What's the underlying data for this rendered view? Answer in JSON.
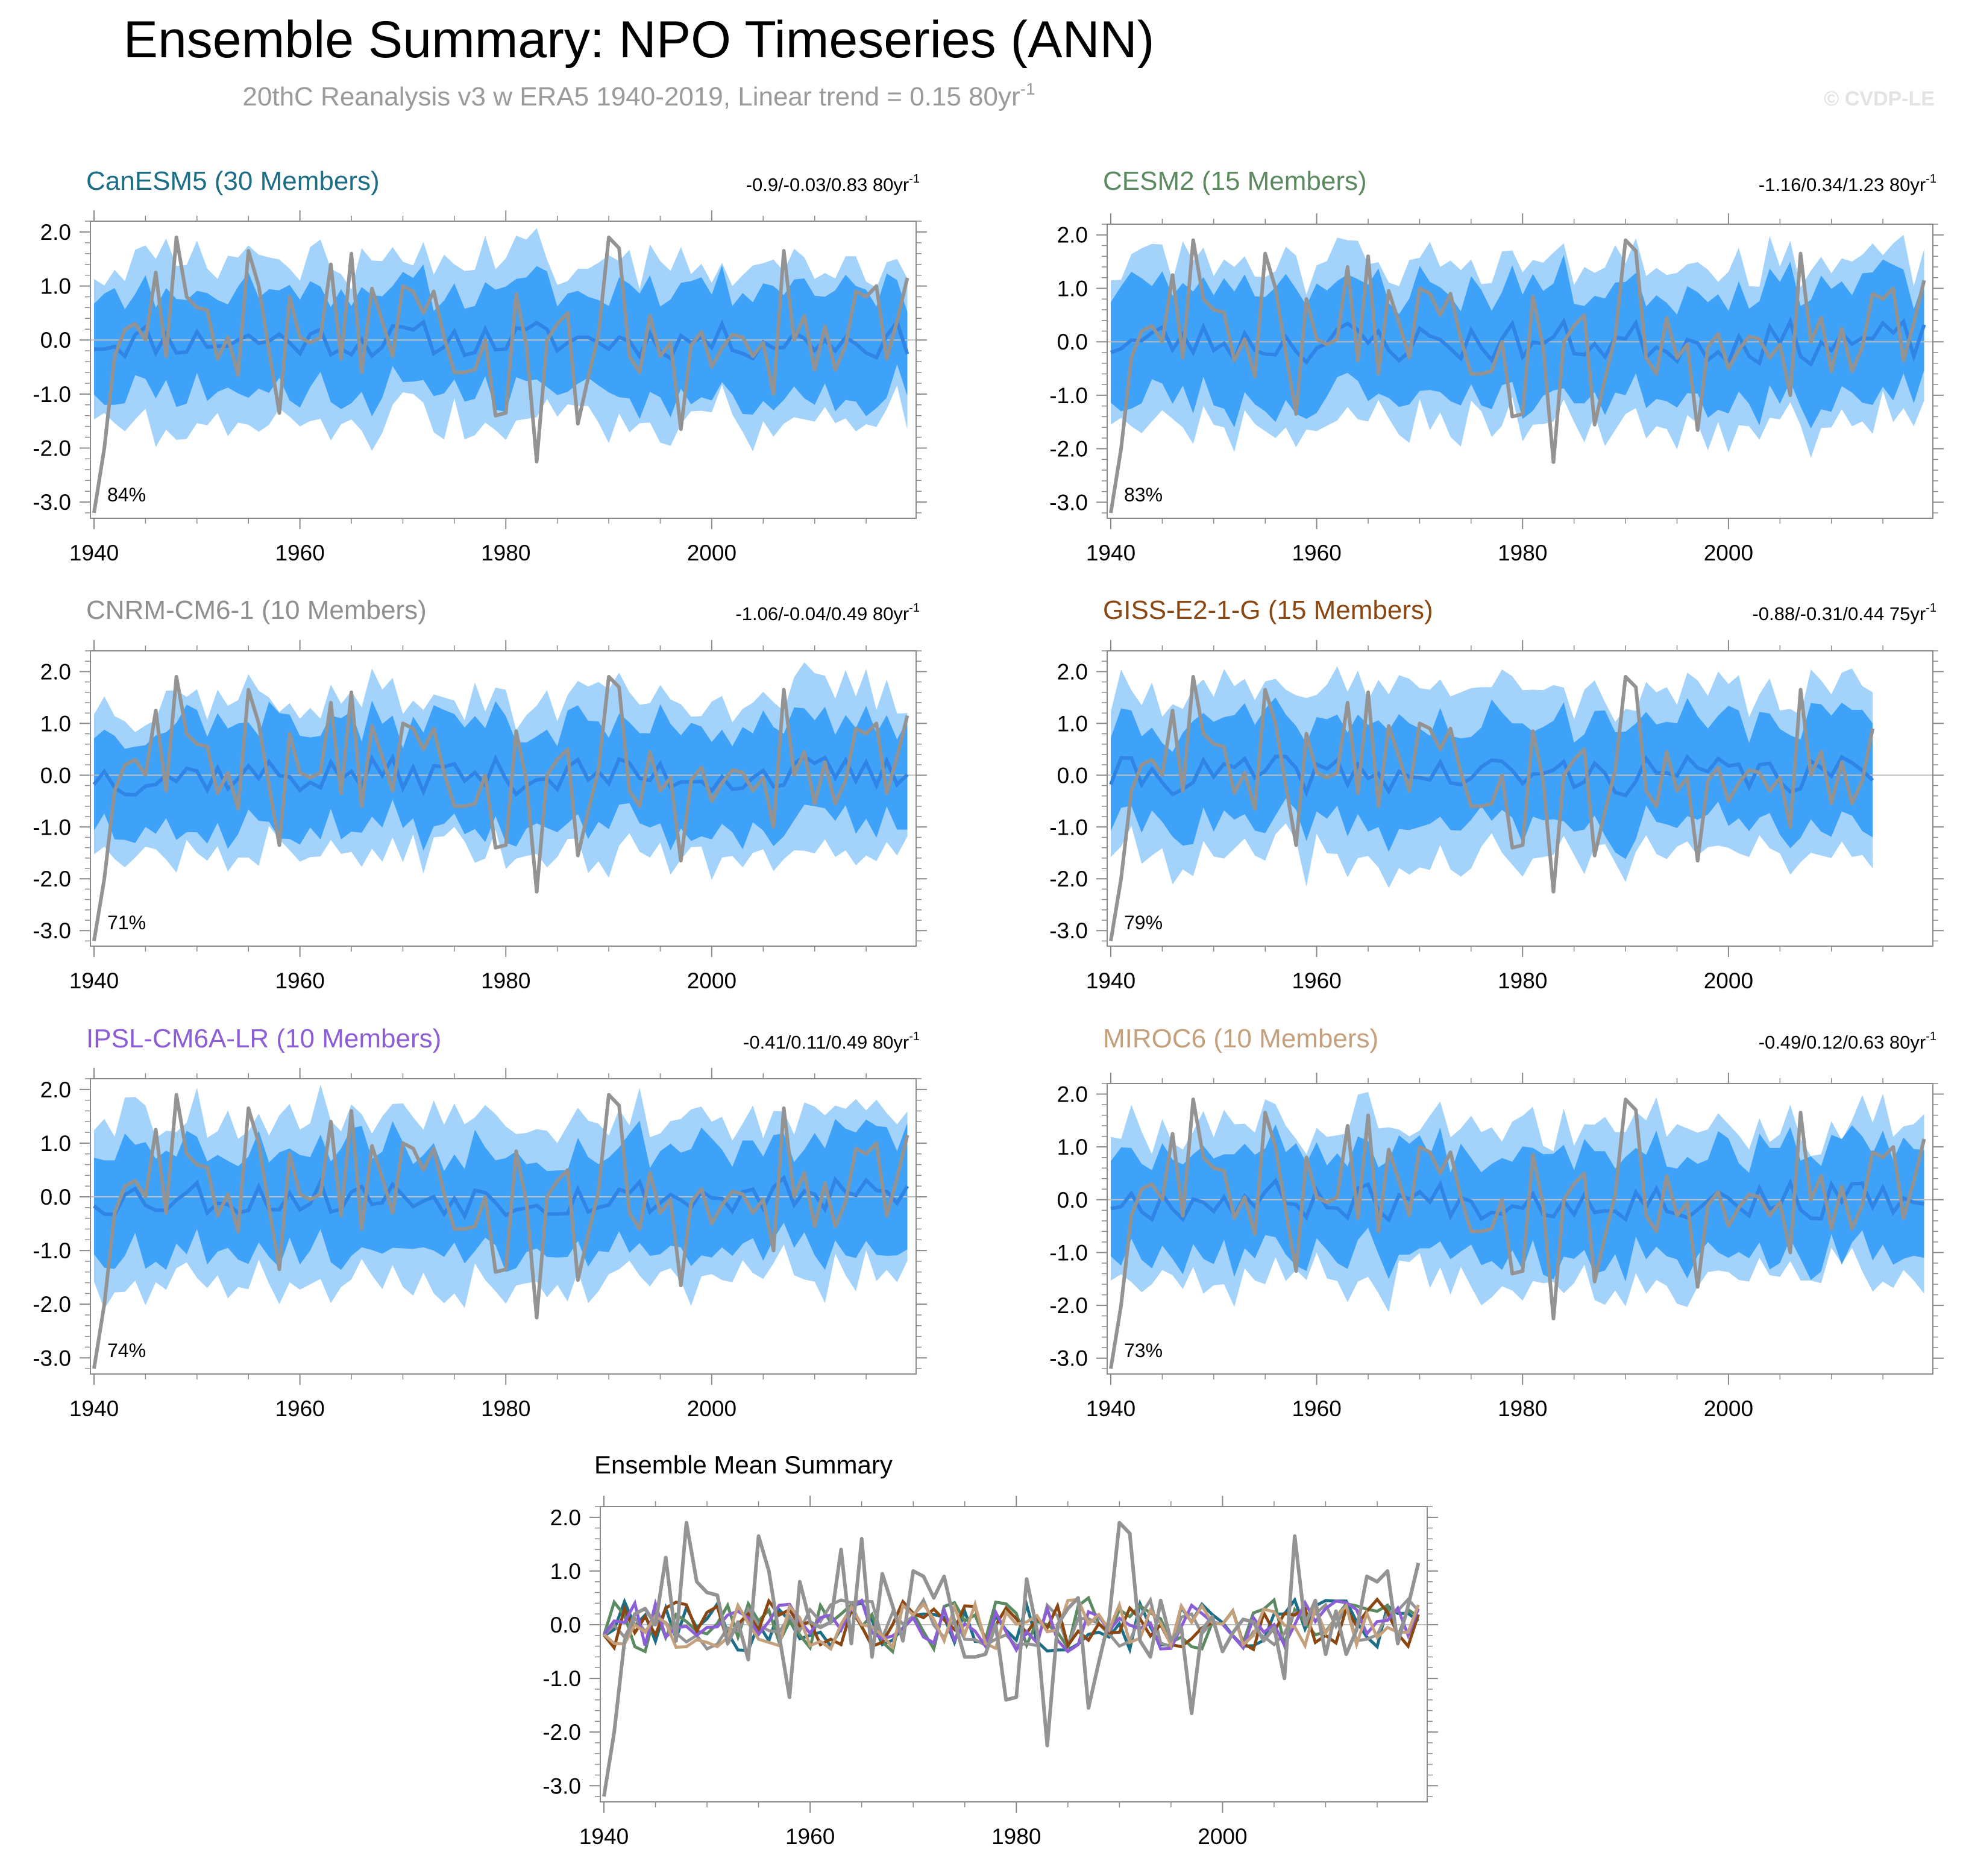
{
  "figure": {
    "title": "Ensemble Summary: NPO Timeseries (ANN)",
    "subtitle": "20thC Reanalysis v3 w ERA5 1940-2019, Linear trend = 0.15 80yr",
    "subtitle_sup": "-1",
    "watermark": "© CVDP-LE"
  },
  "colors": {
    "band_outer": "#a3d3fb",
    "band_inner": "#3ea2f8",
    "ens_mean": "#2f84e6",
    "obs": "#939393",
    "zero_line": "#bfbfbf",
    "axis": "#8a8a8a"
  },
  "chart_data": [
    {
      "type": "line",
      "model": "CanESM5 (30 Members)",
      "title_color": "#1c6e86",
      "trend": "-0.9/-0.03/0.83 80yr",
      "trend_sup": "-1",
      "pct_label": "84%",
      "x_start": 1940,
      "x_end": 2019,
      "xticks": [
        1940,
        1960,
        1980,
        2000
      ],
      "xtick_labels": [
        "1940",
        "1960",
        "1980",
        "2000"
      ],
      "ylim": [
        -3.3,
        2.2
      ],
      "yticks": [
        -3.0,
        -2.0,
        -1.0,
        0.0,
        1.0,
        2.0
      ],
      "ytick_labels": [
        "-3.0",
        "-2.0",
        "-1.0",
        "0.0",
        "1.0",
        "2.0"
      ],
      "amp": [
        0.55,
        0.95,
        1.45
      ],
      "seed": 11
    },
    {
      "type": "line",
      "model": "CESM2 (15 Members)",
      "title_color": "#5b8a60",
      "trend": "-1.16/0.34/1.23 80yr",
      "trend_sup": "-1",
      "pct_label": "83%",
      "x_start": 1940,
      "x_end": 2019,
      "xticks": [
        1940,
        1960,
        1980,
        2000
      ],
      "xtick_labels": [
        "1940",
        "1960",
        "1980",
        "2000"
      ],
      "ylim": [
        -3.3,
        2.2
      ],
      "yticks": [
        -3.0,
        -2.0,
        -1.0,
        0.0,
        1.0,
        2.0
      ],
      "ytick_labels": [
        "-3.0",
        "-2.0",
        "-1.0",
        "0.0",
        "1.0",
        "2.0"
      ],
      "amp": [
        0.65,
        1.05,
        1.5
      ],
      "seed": 23
    },
    {
      "type": "line",
      "model": "CNRM-CM6-1 (10 Members)",
      "title_color": "#8f8f8f",
      "trend": "-1.06/-0.04/0.49 80yr",
      "trend_sup": "-1",
      "pct_label": "71%",
      "x_start": 1940,
      "x_end": 2019,
      "xticks": [
        1940,
        1960,
        1980,
        2000
      ],
      "xtick_labels": [
        "1940",
        "1960",
        "1980",
        "2000"
      ],
      "ylim": [
        -3.3,
        2.4
      ],
      "yticks": [
        -3.0,
        -2.0,
        -1.0,
        0.0,
        1.0,
        2.0
      ],
      "ytick_labels": [
        "-3.0",
        "-2.0",
        "-1.0",
        "0.0",
        "1.0",
        "2.0"
      ],
      "amp": [
        0.6,
        1.0,
        1.5
      ],
      "seed": 37
    },
    {
      "type": "line",
      "model": "GISS-E2-1-G (15 Members)",
      "title_color": "#8a4712",
      "trend": "-0.88/-0.31/0.44 75yr",
      "trend_sup": "-1",
      "pct_label": "79%",
      "x_start": 1940,
      "x_end": 2014,
      "xticks": [
        1940,
        1960,
        1980,
        2000
      ],
      "xtick_labels": [
        "1940",
        "1960",
        "1980",
        "2000"
      ],
      "ylim": [
        -3.3,
        2.4
      ],
      "yticks": [
        -3.0,
        -2.0,
        -1.0,
        0.0,
        1.0,
        2.0
      ],
      "ytick_labels": [
        "-3.0",
        "-2.0",
        "-1.0",
        "0.0",
        "1.0",
        "2.0"
      ],
      "amp": [
        0.6,
        1.0,
        1.55
      ],
      "seed": 41
    },
    {
      "type": "line",
      "model": "IPSL-CM6A-LR (10 Members)",
      "title_color": "#8c5ed6",
      "trend": "-0.41/0.11/0.49 80yr",
      "trend_sup": "-1",
      "pct_label": "74%",
      "x_start": 1940,
      "x_end": 2019,
      "xticks": [
        1940,
        1960,
        1980,
        2000
      ],
      "xtick_labels": [
        "1940",
        "1960",
        "1980",
        "2000"
      ],
      "ylim": [
        -3.3,
        2.2
      ],
      "yticks": [
        -3.0,
        -2.0,
        -1.0,
        0.0,
        1.0,
        2.0
      ],
      "ytick_labels": [
        "-3.0",
        "-2.0",
        "-1.0",
        "0.0",
        "1.0",
        "2.0"
      ],
      "amp": [
        0.6,
        1.0,
        1.55
      ],
      "seed": 53
    },
    {
      "type": "line",
      "model": "MIROC6 (10 Members)",
      "title_color": "#c4a07c",
      "trend": "-0.49/0.12/0.63 80yr",
      "trend_sup": "-1",
      "pct_label": "73%",
      "x_start": 1940,
      "x_end": 2019,
      "xticks": [
        1940,
        1960,
        1980,
        2000
      ],
      "xtick_labels": [
        "1940",
        "1960",
        "1980",
        "2000"
      ],
      "ylim": [
        -3.3,
        2.2
      ],
      "yticks": [
        -3.0,
        -2.0,
        -1.0,
        0.0,
        1.0,
        2.0
      ],
      "ytick_labels": [
        "-3.0",
        "-2.0",
        "-1.0",
        "0.0",
        "1.0",
        "2.0"
      ],
      "amp": [
        0.6,
        1.0,
        1.5
      ],
      "seed": 67
    },
    {
      "type": "line",
      "title": "Ensemble Mean Summary",
      "x_start": 1940,
      "x_end": 2019,
      "xticks": [
        1940,
        1960,
        1980,
        2000
      ],
      "xtick_labels": [
        "1940",
        "1960",
        "1980",
        "2000"
      ],
      "ylim": [
        -3.3,
        2.2
      ],
      "yticks": [
        -3.0,
        -2.0,
        -1.0,
        0.0,
        1.0,
        2.0
      ],
      "ytick_labels": [
        "-3.0",
        "-2.0",
        "-1.0",
        "0.0",
        "1.0",
        "2.0"
      ],
      "series": [
        {
          "name": "CanESM5",
          "color": "#1c6e86"
        },
        {
          "name": "CESM2",
          "color": "#5b8a60"
        },
        {
          "name": "CNRM-CM6-1",
          "color": "#939393"
        },
        {
          "name": "GISS-E2-1-G",
          "color": "#8a4712"
        },
        {
          "name": "IPSL-CM6A-LR",
          "color": "#8c5ed6"
        },
        {
          "name": "MIROC6",
          "color": "#c4a07c"
        }
      ]
    }
  ],
  "observed": {
    "name": "20thC Reanalysis v3 w ERA5",
    "start": 1940,
    "values": [
      -3.2,
      -2.0,
      -0.3,
      0.2,
      0.3,
      0.0,
      1.25,
      -0.3,
      1.9,
      0.8,
      0.6,
      0.55,
      -0.35,
      0.05,
      -0.65,
      1.65,
      1.0,
      -0.2,
      -1.35,
      0.8,
      0.05,
      -0.05,
      0.05,
      1.4,
      -0.35,
      1.6,
      -0.6,
      0.95,
      0.35,
      -0.3,
      1.0,
      0.9,
      0.5,
      0.9,
      0.05,
      -0.6,
      -0.6,
      -0.55,
      0.0,
      -1.4,
      -1.35,
      0.85,
      -0.1,
      -2.25,
      0.0,
      0.3,
      0.5,
      -1.55,
      -0.7,
      0.1,
      1.9,
      1.7,
      -0.3,
      -0.6,
      0.45,
      -0.3,
      -0.05,
      -1.65,
      -0.1,
      0.15,
      -0.5,
      -0.15,
      0.1,
      0.05,
      -0.3,
      -0.05,
      -1.0,
      1.65,
      0.0,
      0.45,
      -0.55,
      0.25,
      -0.55,
      -0.1,
      0.9,
      0.8,
      1.0,
      -0.35,
      0.35,
      1.15
    ]
  }
}
